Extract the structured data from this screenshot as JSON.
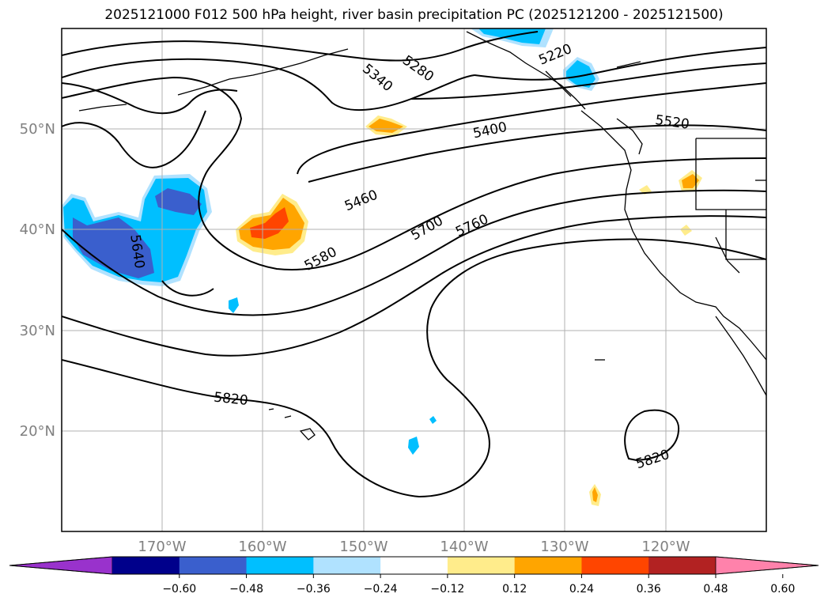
{
  "title": "2025121000 F012 500 hPa height, river basin precipitation PC (2025121200 - 2025121500)",
  "map": {
    "lat_labels": [
      "50°N",
      "40°N",
      "30°N",
      "20°N"
    ],
    "lon_labels": [
      "170°W",
      "160°W",
      "150°W",
      "140°W",
      "130°W",
      "120°W"
    ],
    "contour_labels": [
      "5220",
      "5280",
      "5340",
      "5400",
      "5460",
      "5520",
      "5580",
      "5640",
      "5700",
      "5760",
      "5820",
      "5820"
    ]
  },
  "colorbar": {
    "colors": [
      "#9932cc",
      "#00008b",
      "#3a5fcd",
      "#00bfff",
      "#b0e2ff",
      "#ffffff",
      "#ffec8b",
      "#ffa500",
      "#ff4500",
      "#b22222",
      "#ff82ab"
    ],
    "tick_labels": [
      "−0.60",
      "−0.48",
      "−0.36",
      "−0.24",
      "−0.12",
      "0.12",
      "0.24",
      "0.36",
      "0.48",
      "0.60"
    ]
  }
}
